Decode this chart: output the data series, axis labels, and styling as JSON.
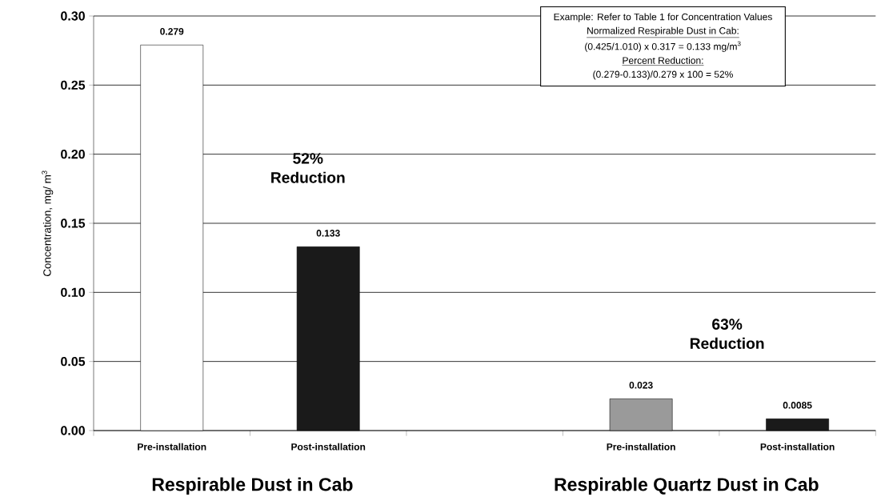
{
  "chart_data": {
    "type": "bar",
    "ylabel": "Concentration, mg/ m$^{3}$",
    "categories": [
      "Pre-installation",
      "Post-installation",
      null,
      "Pre-installation",
      "Post-installation"
    ],
    "values": [
      0.279,
      0.133,
      null,
      0.023,
      0.0085
    ],
    "colors": [
      "#ffffff",
      "#1a1a1a",
      "#ffffff",
      "#9a9a9a",
      "#1a1a1a"
    ],
    "value_labels": [
      "0.279",
      "0.133",
      null,
      "0.023",
      "0.0085"
    ],
    "ylim": [
      0,
      0.3
    ],
    "yticks": [
      {
        "value": 0,
        "label": "0.00"
      },
      {
        "value": 0.05,
        "label": "0.05"
      },
      {
        "value": 0.1,
        "label": "0.10"
      },
      {
        "value": 0.15,
        "label": "0.15"
      },
      {
        "value": 0.2,
        "label": "0.20"
      },
      {
        "value": 0.25,
        "label": "0.25"
      },
      {
        "value": 0.3,
        "label": "0.30"
      }
    ],
    "grid": "y",
    "annotations": [
      "52% Reduction",
      "63% Reduction",
      "Example: Refer to Table 1 for Concentration Values",
      "Normalized Respirable Dust in Cab:",
      "(0.425/1.010) x 0.317 = 0.133 mg/m$^{3}$",
      "Percent Reduction:",
      "(0.279-0.133)/0.279 x 100 = 52%",
      "Respirable Dust in Cab",
      "Respirable Quartz Dust in Cab"
    ]
  }
}
